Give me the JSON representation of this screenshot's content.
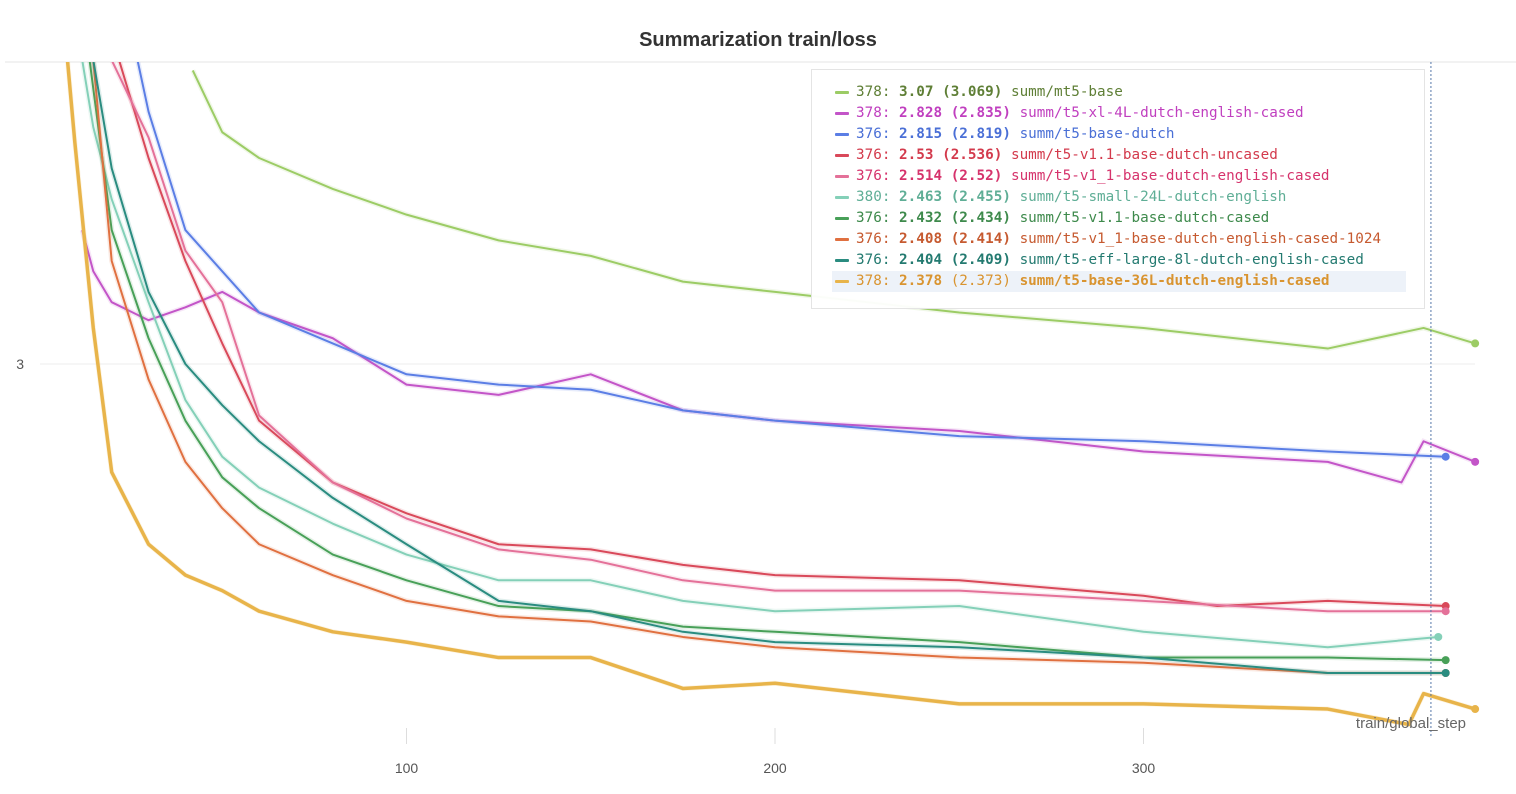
{
  "chart_data": {
    "type": "line",
    "title": "Summarization train/loss",
    "xlabel": "train/global_step",
    "ylabel": "",
    "xlim": [
      0,
      390
    ],
    "ylim": [
      2.27,
      3.59
    ],
    "xticks": [
      100,
      200,
      300
    ],
    "yticks": [
      3
    ],
    "grid": "horizontal",
    "legend_placement": "top-right",
    "hover_step": 378,
    "series": [
      {
        "name": "summ/mt5-base",
        "color": "#9ccc65",
        "text_color": "#5f7f36",
        "legend": {
          "step": "378:",
          "value": "3.07",
          "smoothed": "(3.069)"
        },
        "x": [
          42,
          50,
          60,
          80,
          100,
          125,
          150,
          175,
          200,
          250,
          300,
          350,
          376,
          390
        ],
        "y": [
          3.57,
          3.45,
          3.4,
          3.34,
          3.29,
          3.24,
          3.21,
          3.16,
          3.14,
          3.1,
          3.07,
          3.03,
          3.07,
          3.04
        ]
      },
      {
        "name": "summ/t5-xl-4L-dutch-english-cased",
        "color": "#c355c8",
        "text_color": "#c03fbf",
        "legend": {
          "step": "378:",
          "value": "2.828",
          "smoothed": "(2.835)"
        },
        "x": [
          12,
          15,
          20,
          30,
          40,
          50,
          60,
          80,
          100,
          125,
          150,
          175,
          200,
          250,
          300,
          350,
          370,
          376,
          390
        ],
        "y": [
          3.26,
          3.18,
          3.12,
          3.085,
          3.11,
          3.14,
          3.1,
          3.05,
          2.96,
          2.94,
          2.98,
          2.91,
          2.89,
          2.87,
          2.83,
          2.81,
          2.77,
          2.85,
          2.81
        ]
      },
      {
        "name": "summ/t5-base-dutch",
        "color": "#5b7ee5",
        "text_color": "#4a6fd6",
        "legend": {
          "step": "376:",
          "value": "2.815",
          "smoothed": "(2.819)"
        },
        "x": [
          27,
          30,
          40,
          50,
          60,
          80,
          100,
          125,
          150,
          175,
          200,
          250,
          300,
          350,
          382
        ],
        "y": [
          3.59,
          3.49,
          3.26,
          3.18,
          3.1,
          3.04,
          2.98,
          2.96,
          2.95,
          2.91,
          2.89,
          2.86,
          2.85,
          2.83,
          2.82
        ]
      },
      {
        "name": "summ/t5-v1.1-base-dutch-uncased",
        "color": "#d9495a",
        "text_color": "#d33a4c",
        "legend": {
          "step": "376:",
          "value": "2.53",
          "smoothed": "(2.536)"
        },
        "x": [
          22,
          30,
          40,
          50,
          60,
          80,
          100,
          125,
          150,
          175,
          200,
          250,
          300,
          320,
          350,
          382
        ],
        "y": [
          3.59,
          3.4,
          3.2,
          3.04,
          2.89,
          2.77,
          2.71,
          2.65,
          2.64,
          2.61,
          2.59,
          2.58,
          2.55,
          2.53,
          2.54,
          2.53
        ]
      },
      {
        "name": "summ/t5-v1_1-base-dutch-english-cased",
        "color": "#e47199",
        "text_color": "#d6336c",
        "legend": {
          "step": "376:",
          "value": "2.514",
          "smoothed": "(2.52)"
        },
        "x": [
          20,
          30,
          40,
          50,
          60,
          80,
          100,
          125,
          150,
          175,
          200,
          250,
          300,
          350,
          382
        ],
        "y": [
          3.59,
          3.44,
          3.22,
          3.12,
          2.9,
          2.77,
          2.7,
          2.64,
          2.62,
          2.58,
          2.56,
          2.56,
          2.54,
          2.52,
          2.52
        ]
      },
      {
        "name": "summ/t5-small-24L-dutch-english",
        "color": "#84d0b8",
        "text_color": "#5fae96",
        "legend": {
          "step": "380:",
          "value": "2.463",
          "smoothed": "(2.455)"
        },
        "x": [
          12,
          15,
          20,
          30,
          40,
          50,
          60,
          80,
          100,
          125,
          150,
          175,
          200,
          250,
          300,
          350,
          380
        ],
        "y": [
          3.59,
          3.46,
          3.32,
          3.12,
          2.93,
          2.82,
          2.76,
          2.69,
          2.63,
          2.58,
          2.58,
          2.54,
          2.52,
          2.53,
          2.48,
          2.45,
          2.47
        ]
      },
      {
        "name": "summ/t5-v1.1-base-dutch-cased",
        "color": "#48a058",
        "text_color": "#3e8a4c",
        "legend": {
          "step": "376:",
          "value": "2.432",
          "smoothed": "(2.434)"
        },
        "x": [
          14,
          20,
          30,
          40,
          50,
          60,
          80,
          100,
          125,
          150,
          175,
          200,
          250,
          300,
          350,
          382
        ],
        "y": [
          3.59,
          3.26,
          3.05,
          2.89,
          2.78,
          2.72,
          2.63,
          2.58,
          2.53,
          2.52,
          2.49,
          2.48,
          2.46,
          2.43,
          2.43,
          2.425
        ]
      },
      {
        "name": "summ/t5-v1_1-base-dutch-english-cased-1024",
        "color": "#e07040",
        "text_color": "#c65a30",
        "legend": {
          "step": "376:",
          "value": "2.408",
          "smoothed": "(2.414)"
        },
        "x": [
          15,
          20,
          30,
          40,
          50,
          60,
          80,
          100,
          125,
          150,
          175,
          200,
          250,
          300,
          350,
          382
        ],
        "y": [
          3.59,
          3.2,
          2.97,
          2.81,
          2.72,
          2.65,
          2.59,
          2.54,
          2.51,
          2.5,
          2.47,
          2.45,
          2.43,
          2.42,
          2.4,
          2.4
        ]
      },
      {
        "name": "summ/t5-eff-large-8l-dutch-english-cased",
        "color": "#2a8c80",
        "text_color": "#237a70",
        "legend": {
          "step": "376:",
          "value": "2.404",
          "smoothed": "(2.409)"
        },
        "x": [
          15,
          20,
          30,
          40,
          50,
          60,
          80,
          100,
          125,
          150,
          175,
          200,
          250,
          300,
          350,
          382
        ],
        "y": [
          3.59,
          3.38,
          3.14,
          3.0,
          2.92,
          2.85,
          2.74,
          2.65,
          2.54,
          2.52,
          2.48,
          2.46,
          2.45,
          2.43,
          2.4,
          2.4
        ]
      },
      {
        "name": "summ/t5-base-36L-dutch-english-cased",
        "color": "#e8b44a",
        "text_color": "#d99430",
        "legend": {
          "step": "378:",
          "value": "2.378",
          "smoothed": "(2.373)"
        },
        "x": [
          8,
          10,
          15,
          20,
          30,
          40,
          50,
          60,
          80,
          100,
          125,
          150,
          175,
          200,
          250,
          300,
          350,
          372,
          376,
          390
        ],
        "y": [
          3.59,
          3.43,
          3.07,
          2.79,
          2.65,
          2.59,
          2.56,
          2.52,
          2.48,
          2.46,
          2.43,
          2.43,
          2.37,
          2.38,
          2.34,
          2.34,
          2.33,
          2.3,
          2.36,
          2.33
        ]
      }
    ]
  }
}
